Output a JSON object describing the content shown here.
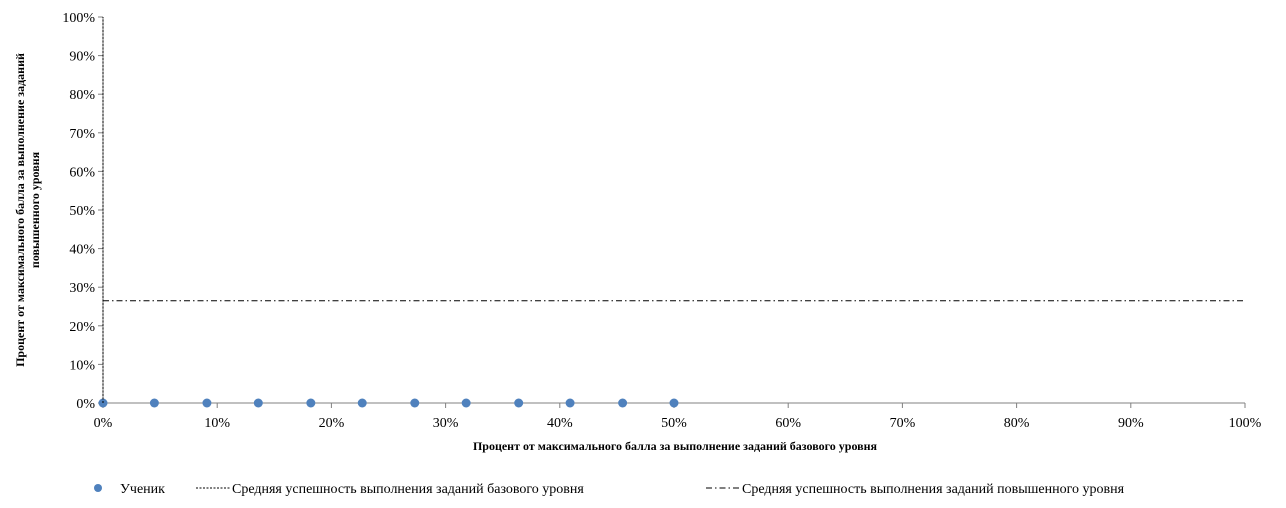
{
  "chart_data": {
    "type": "scatter",
    "xlabel": "Процент  от максимального  балла за выполнение  заданий  базового  уровня",
    "ylabel_lines": [
      "Процент  от максимального  балла за выполнение  заданий",
      "повышенного  уровня"
    ],
    "xlim": [
      0,
      100
    ],
    "ylim": [
      0,
      100
    ],
    "x_ticks": [
      "0%",
      "10%",
      "20%",
      "30%",
      "40%",
      "50%",
      "60%",
      "70%",
      "80%",
      "90%",
      "100%"
    ],
    "y_ticks": [
      "0%",
      "10%",
      "20%",
      "30%",
      "40%",
      "50%",
      "60%",
      "70%",
      "80%",
      "90%",
      "100%"
    ],
    "grid": false,
    "legend_position": "bottom",
    "series": [
      {
        "name": "Ученик",
        "kind": "scatter",
        "color": "#4f81bd",
        "points": [
          {
            "x": 0,
            "y": 0
          },
          {
            "x": 4.5,
            "y": 0
          },
          {
            "x": 9.1,
            "y": 0
          },
          {
            "x": 13.6,
            "y": 0
          },
          {
            "x": 18.2,
            "y": 0
          },
          {
            "x": 22.7,
            "y": 0
          },
          {
            "x": 27.3,
            "y": 0
          },
          {
            "x": 31.8,
            "y": 0
          },
          {
            "x": 36.4,
            "y": 0
          },
          {
            "x": 40.9,
            "y": 0
          },
          {
            "x": 45.5,
            "y": 0
          },
          {
            "x": 50,
            "y": 0
          }
        ]
      },
      {
        "name": "Средняя успешность  выполнения  заданий  базового уровня",
        "kind": "vline",
        "style": "dotted",
        "color": "#000000",
        "x": 0
      },
      {
        "name": "Средняя успешность  выполнения  заданий  повышенного  уровня",
        "kind": "hline",
        "style": "dashdot",
        "color": "#000000",
        "y": 26.5
      }
    ]
  }
}
